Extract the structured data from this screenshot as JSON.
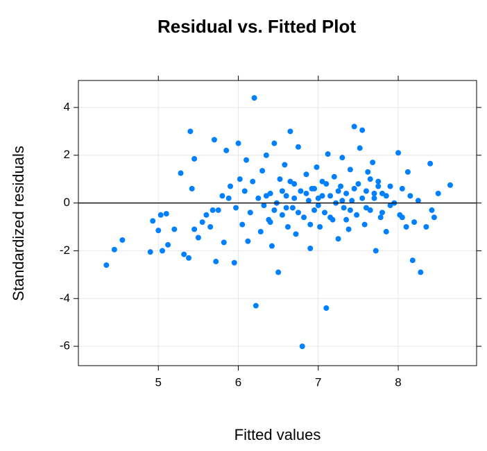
{
  "chart_data": {
    "type": "scatter",
    "title": "Residual vs. Fitted Plot",
    "x_label": "Fitted values",
    "y_label": "Standardized residuals",
    "color": "#0080ff",
    "grid": true,
    "hline": 0,
    "xlim": [
      4.0,
      8.98
    ],
    "ylim": [
      -6.81,
      5.13
    ],
    "xticks": [
      5,
      6,
      7,
      8
    ],
    "yticks": [
      -6,
      -4,
      -2,
      0,
      2,
      4
    ],
    "x": [
      4.35,
      4.45,
      4.55,
      4.9,
      4.93,
      5.0,
      5.03,
      5.05,
      5.1,
      5.12,
      5.2,
      5.28,
      5.32,
      5.38,
      5.4,
      5.42,
      5.45,
      5.45,
      5.5,
      5.55,
      5.6,
      5.65,
      5.7,
      5.72,
      5.75,
      5.8,
      5.82,
      5.85,
      5.9,
      5.95,
      5.97,
      6.0,
      6.02,
      6.05,
      6.08,
      6.1,
      6.12,
      6.15,
      6.18,
      6.2,
      6.22,
      6.25,
      6.28,
      6.3,
      6.32,
      6.35,
      6.38,
      6.4,
      6.42,
      6.45,
      6.48,
      6.5,
      6.52,
      6.55,
      6.58,
      6.6,
      6.62,
      6.65,
      6.68,
      6.7,
      6.72,
      6.75,
      6.78,
      6.8,
      6.82,
      6.85,
      6.88,
      6.9,
      6.92,
      6.95,
      6.98,
      7.0,
      7.02,
      7.05,
      7.08,
      7.1,
      7.12,
      7.15,
      7.18,
      7.2,
      7.22,
      7.25,
      7.28,
      7.3,
      7.32,
      7.35,
      7.38,
      7.4,
      7.42,
      7.45,
      7.48,
      7.5,
      7.52,
      7.55,
      7.58,
      7.6,
      7.62,
      7.65,
      7.68,
      7.7,
      7.72,
      7.75,
      7.78,
      7.8,
      7.85,
      7.9,
      7.95,
      8.0,
      8.02,
      8.05,
      8.1,
      8.12,
      8.15,
      8.18,
      8.2,
      8.25,
      8.28,
      8.35,
      8.4,
      8.42,
      8.45,
      8.5,
      8.65,
      6.35,
      6.45,
      6.55,
      6.6,
      6.7,
      6.75,
      6.85,
      6.95,
      7.0,
      7.05,
      7.15,
      7.25,
      7.3,
      7.4,
      7.45,
      7.55,
      7.6,
      7.7,
      7.75,
      7.85,
      7.9,
      6.4,
      6.65,
      6.9,
      7.1,
      7.35,
      7.65,
      7.8,
      8.05,
      5.68,
      5.88
    ],
    "values": [
      -2.6,
      -1.95,
      -1.55,
      -2.05,
      -0.75,
      -1.15,
      -0.5,
      -2.0,
      -0.45,
      -1.75,
      -1.1,
      1.25,
      -2.15,
      -2.3,
      3.0,
      0.6,
      1.85,
      -1.1,
      -1.45,
      -0.8,
      -0.5,
      -1.0,
      2.65,
      -2.45,
      -0.3,
      0.3,
      -1.65,
      2.2,
      0.7,
      -2.5,
      -0.2,
      2.5,
      1.0,
      -0.9,
      0.5,
      1.8,
      -1.6,
      -0.4,
      0.9,
      4.4,
      -4.3,
      0.2,
      -1.2,
      1.35,
      -0.1,
      2.0,
      -0.7,
      0.4,
      -1.8,
      2.5,
      0.0,
      -2.9,
      1.0,
      -0.5,
      1.6,
      0.3,
      -1.0,
      3.0,
      -0.2,
      0.8,
      -1.3,
      2.35,
      0.5,
      -6.0,
      -0.6,
      1.2,
      0.1,
      -1.9,
      0.6,
      -0.3,
      1.5,
      0.2,
      -1.0,
      0.9,
      -0.4,
      -4.4,
      2.05,
      0.3,
      -0.7,
      1.1,
      0.0,
      -1.5,
      0.7,
      1.9,
      -0.2,
      0.4,
      -1.1,
      1.4,
      0.1,
      3.2,
      -0.5,
      0.8,
      2.3,
      3.05,
      -0.9,
      0.5,
      1.3,
      -0.3,
      1.7,
      0.2,
      -2.0,
      0.9,
      -0.6,
      0.4,
      -1.2,
      0.7,
      0.0,
      2.1,
      -0.5,
      0.6,
      -1.0,
      1.3,
      0.3,
      -2.4,
      -0.8,
      0.1,
      -2.9,
      -1.0,
      1.65,
      -0.3,
      -0.6,
      0.4,
      0.75,
      0.3,
      -0.3,
      0.5,
      -0.2,
      0.2,
      -0.4,
      0.4,
      0.6,
      -0.1,
      0.3,
      -0.6,
      0.5,
      0.1,
      -0.3,
      0.6,
      0.2,
      -0.2,
      0.4,
      0.7,
      0.3,
      -0.1,
      -0.8,
      0.9,
      -0.9,
      0.8,
      -0.7,
      1.0,
      -0.4,
      -0.6,
      -0.3,
      0.2
    ]
  }
}
